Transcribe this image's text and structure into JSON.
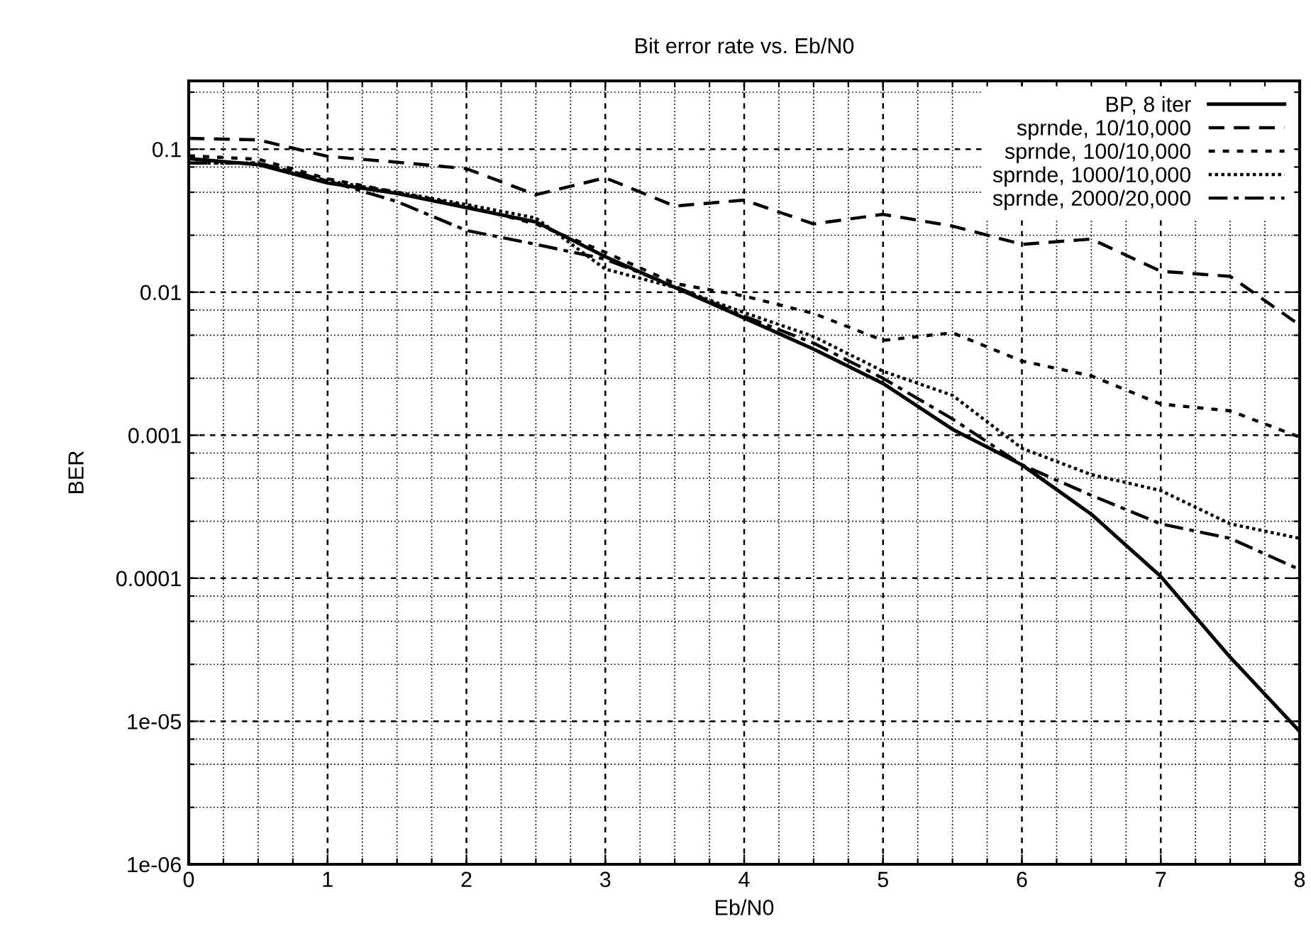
{
  "chart_data": {
    "type": "line",
    "title": "Bit error rate vs. Eb/N0",
    "xlabel": "Eb/N0",
    "ylabel": "BER",
    "log": "y",
    "grid": true,
    "legend": "top right",
    "x": [
      0,
      0.5,
      1,
      1.5,
      2,
      2.5,
      3,
      3.5,
      4,
      4.5,
      5,
      5.5,
      6,
      6.5,
      7,
      7.5,
      8
    ],
    "xlim": [
      0,
      8
    ],
    "ylim": [
      1e-06,
      0.3
    ],
    "xticks": [
      0,
      {
        "value": 0.25,
        "label": null
      },
      {
        "value": 0.5,
        "label": null
      },
      {
        "value": 0.75,
        "label": null
      },
      1,
      {
        "value": 1.25,
        "label": null
      },
      {
        "value": 1.5,
        "label": null
      },
      {
        "value": 1.75,
        "label": null
      },
      2,
      {
        "value": 2.25,
        "label": null
      },
      {
        "value": 2.5,
        "label": null
      },
      {
        "value": 2.75,
        "label": null
      },
      3,
      {
        "value": 3.25,
        "label": null
      },
      {
        "value": 3.5,
        "label": null
      },
      {
        "value": 3.75,
        "label": null
      },
      4,
      {
        "value": 4.25,
        "label": null
      },
      {
        "value": 4.5,
        "label": null
      },
      {
        "value": 4.75,
        "label": null
      },
      5,
      {
        "value": 5.25,
        "label": null
      },
      {
        "value": 5.5,
        "label": null
      },
      {
        "value": 5.75,
        "label": null
      },
      6,
      {
        "value": 6.25,
        "label": null
      },
      {
        "value": 6.5,
        "label": null
      },
      {
        "value": 6.75,
        "label": null
      },
      7,
      {
        "value": 7.25,
        "label": null
      },
      {
        "value": 7.5,
        "label": null
      },
      {
        "value": 7.75,
        "label": null
      },
      8
    ],
    "yticks": [
      {
        "value": 1e-06,
        "label": "1e-06"
      },
      {
        "value": 2.5e-06,
        "label": null
      },
      {
        "value": 5e-06,
        "label": null
      },
      {
        "value": 7.5e-06,
        "label": null
      },
      {
        "value": 1e-05,
        "label": "1e-05"
      },
      {
        "value": 2.5e-05,
        "label": null
      },
      {
        "value": 5e-05,
        "label": null
      },
      {
        "value": 7.5e-05,
        "label": null
      },
      {
        "value": 0.0001,
        "label": "0.0001"
      },
      {
        "value": 0.00025,
        "label": null
      },
      {
        "value": 0.0005,
        "label": null
      },
      {
        "value": 0.00075,
        "label": null
      },
      {
        "value": 0.001,
        "label": "0.001"
      },
      {
        "value": 0.0025,
        "label": null
      },
      {
        "value": 0.005,
        "label": null
      },
      {
        "value": 0.0075,
        "label": null
      },
      {
        "value": 0.01,
        "label": "0.01"
      },
      {
        "value": 0.025,
        "label": null
      },
      {
        "value": 0.05,
        "label": null
      },
      {
        "value": 0.075,
        "label": null
      },
      {
        "value": 0.1,
        "label": "0.1"
      },
      {
        "value": 0.25,
        "label": null
      }
    ],
    "series": [
      {
        "name": "BP, 8 iter",
        "color": "#000000",
        "line_style": "solid",
        "values": [
          0.086,
          0.078,
          0.058,
          0.049,
          0.039,
          0.031,
          0.0177,
          0.0108,
          0.0066,
          0.004,
          0.0023,
          0.0011,
          0.00062,
          0.00028,
          0.000103,
          2.8e-05,
          8.5e-06
        ]
      },
      {
        "name": "sprnde, 10/10,000",
        "color": "#000000",
        "line_style": "dashed",
        "values": [
          0.119,
          0.116,
          0.089,
          0.081,
          0.073,
          0.048,
          0.063,
          0.04,
          0.044,
          0.03,
          0.035,
          0.029,
          0.0216,
          0.0235,
          0.014,
          0.0129,
          0.0059
        ]
      },
      {
        "name": "sprnde, 100/10,000",
        "color": "#000000",
        "line_style": "dotted",
        "values": [
          0.09,
          0.085,
          0.062,
          0.05,
          0.04,
          0.03,
          0.019,
          0.0115,
          0.0094,
          0.0071,
          0.0046,
          0.0052,
          0.0033,
          0.0026,
          0.00165,
          0.00148,
          0.00097
        ]
      },
      {
        "name": "sprnde, 1000/10,000",
        "color": "#000000",
        "line_style": "densely dotted",
        "values": [
          0.08,
          0.08,
          0.06,
          0.05,
          0.041,
          0.033,
          0.0145,
          0.0108,
          0.0072,
          0.0049,
          0.0028,
          0.0019,
          0.00081,
          0.00053,
          0.00041,
          0.00024,
          0.00019
        ]
      },
      {
        "name": "sprnde, 2000/20,000",
        "color": "#000000",
        "line_style": "dashdot",
        "values": [
          0.08,
          0.08,
          0.06,
          0.043,
          0.027,
          0.0216,
          0.017,
          0.011,
          0.0068,
          0.0044,
          0.0025,
          0.0013,
          0.00062,
          0.00038,
          0.00024,
          0.00019,
          0.000115
        ]
      }
    ]
  }
}
